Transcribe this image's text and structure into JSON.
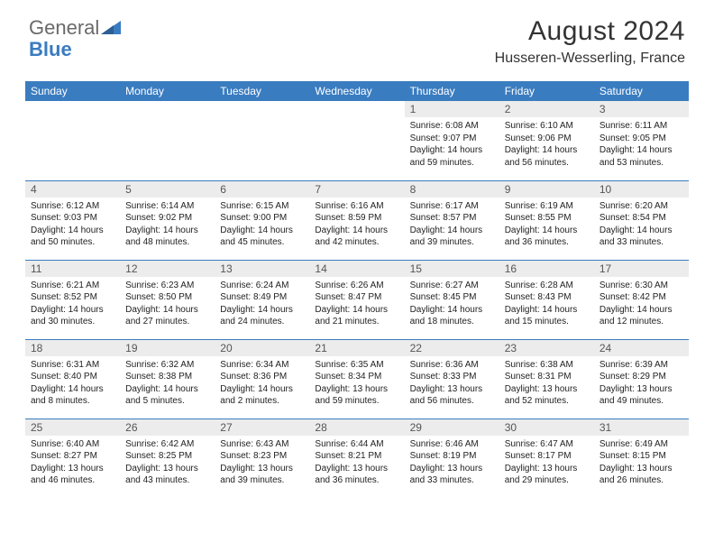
{
  "logo": {
    "text1": "General",
    "text2": "Blue"
  },
  "title": "August 2024",
  "location": "Husseren-Wesserling, France",
  "colors": {
    "header_bg": "#3a7cc0",
    "header_fg": "#ffffff",
    "daynum_bg": "#ececec",
    "daynum_fg": "#555555",
    "row_divider": "#3a7cc0",
    "logo_gray": "#6a6a6a",
    "logo_blue": "#3a7cc0",
    "text": "#222222",
    "background": "#ffffff"
  },
  "weekdays": [
    "Sunday",
    "Monday",
    "Tuesday",
    "Wednesday",
    "Thursday",
    "Friday",
    "Saturday"
  ],
  "days": [
    {
      "n": 1,
      "sunrise": "6:08 AM",
      "sunset": "9:07 PM",
      "daylight": "14 hours and 59 minutes."
    },
    {
      "n": 2,
      "sunrise": "6:10 AM",
      "sunset": "9:06 PM",
      "daylight": "14 hours and 56 minutes."
    },
    {
      "n": 3,
      "sunrise": "6:11 AM",
      "sunset": "9:05 PM",
      "daylight": "14 hours and 53 minutes."
    },
    {
      "n": 4,
      "sunrise": "6:12 AM",
      "sunset": "9:03 PM",
      "daylight": "14 hours and 50 minutes."
    },
    {
      "n": 5,
      "sunrise": "6:14 AM",
      "sunset": "9:02 PM",
      "daylight": "14 hours and 48 minutes."
    },
    {
      "n": 6,
      "sunrise": "6:15 AM",
      "sunset": "9:00 PM",
      "daylight": "14 hours and 45 minutes."
    },
    {
      "n": 7,
      "sunrise": "6:16 AM",
      "sunset": "8:59 PM",
      "daylight": "14 hours and 42 minutes."
    },
    {
      "n": 8,
      "sunrise": "6:17 AM",
      "sunset": "8:57 PM",
      "daylight": "14 hours and 39 minutes."
    },
    {
      "n": 9,
      "sunrise": "6:19 AM",
      "sunset": "8:55 PM",
      "daylight": "14 hours and 36 minutes."
    },
    {
      "n": 10,
      "sunrise": "6:20 AM",
      "sunset": "8:54 PM",
      "daylight": "14 hours and 33 minutes."
    },
    {
      "n": 11,
      "sunrise": "6:21 AM",
      "sunset": "8:52 PM",
      "daylight": "14 hours and 30 minutes."
    },
    {
      "n": 12,
      "sunrise": "6:23 AM",
      "sunset": "8:50 PM",
      "daylight": "14 hours and 27 minutes."
    },
    {
      "n": 13,
      "sunrise": "6:24 AM",
      "sunset": "8:49 PM",
      "daylight": "14 hours and 24 minutes."
    },
    {
      "n": 14,
      "sunrise": "6:26 AM",
      "sunset": "8:47 PM",
      "daylight": "14 hours and 21 minutes."
    },
    {
      "n": 15,
      "sunrise": "6:27 AM",
      "sunset": "8:45 PM",
      "daylight": "14 hours and 18 minutes."
    },
    {
      "n": 16,
      "sunrise": "6:28 AM",
      "sunset": "8:43 PM",
      "daylight": "14 hours and 15 minutes."
    },
    {
      "n": 17,
      "sunrise": "6:30 AM",
      "sunset": "8:42 PM",
      "daylight": "14 hours and 12 minutes."
    },
    {
      "n": 18,
      "sunrise": "6:31 AM",
      "sunset": "8:40 PM",
      "daylight": "14 hours and 8 minutes."
    },
    {
      "n": 19,
      "sunrise": "6:32 AM",
      "sunset": "8:38 PM",
      "daylight": "14 hours and 5 minutes."
    },
    {
      "n": 20,
      "sunrise": "6:34 AM",
      "sunset": "8:36 PM",
      "daylight": "14 hours and 2 minutes."
    },
    {
      "n": 21,
      "sunrise": "6:35 AM",
      "sunset": "8:34 PM",
      "daylight": "13 hours and 59 minutes."
    },
    {
      "n": 22,
      "sunrise": "6:36 AM",
      "sunset": "8:33 PM",
      "daylight": "13 hours and 56 minutes."
    },
    {
      "n": 23,
      "sunrise": "6:38 AM",
      "sunset": "8:31 PM",
      "daylight": "13 hours and 52 minutes."
    },
    {
      "n": 24,
      "sunrise": "6:39 AM",
      "sunset": "8:29 PM",
      "daylight": "13 hours and 49 minutes."
    },
    {
      "n": 25,
      "sunrise": "6:40 AM",
      "sunset": "8:27 PM",
      "daylight": "13 hours and 46 minutes."
    },
    {
      "n": 26,
      "sunrise": "6:42 AM",
      "sunset": "8:25 PM",
      "daylight": "13 hours and 43 minutes."
    },
    {
      "n": 27,
      "sunrise": "6:43 AM",
      "sunset": "8:23 PM",
      "daylight": "13 hours and 39 minutes."
    },
    {
      "n": 28,
      "sunrise": "6:44 AM",
      "sunset": "8:21 PM",
      "daylight": "13 hours and 36 minutes."
    },
    {
      "n": 29,
      "sunrise": "6:46 AM",
      "sunset": "8:19 PM",
      "daylight": "13 hours and 33 minutes."
    },
    {
      "n": 30,
      "sunrise": "6:47 AM",
      "sunset": "8:17 PM",
      "daylight": "13 hours and 29 minutes."
    },
    {
      "n": 31,
      "sunrise": "6:49 AM",
      "sunset": "8:15 PM",
      "daylight": "13 hours and 26 minutes."
    }
  ],
  "leading_blanks": 4,
  "labels": {
    "sunrise": "Sunrise:",
    "sunset": "Sunset:",
    "daylight": "Daylight:"
  }
}
